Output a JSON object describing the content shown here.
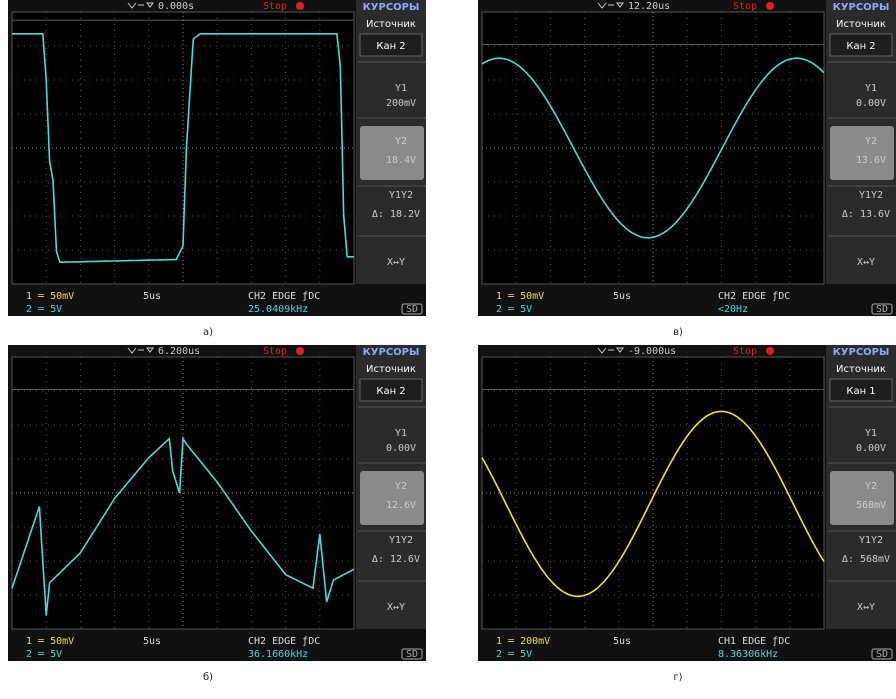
{
  "panels": [
    {
      "caption": "а)",
      "trigger_time": "0.000s",
      "status": "Stop",
      "menu": {
        "title": "КУРСОРЫ",
        "source_label": "Источник",
        "source": "Кан 2",
        "y1_label": "Y1",
        "y1": "200mV",
        "y2_label": "Y2",
        "y2": "18.4V",
        "y1y2_label": "Y1Y2",
        "delta": "Δ: 18.2V",
        "swap": "X↔Y"
      },
      "ch1": "1 ═ 50mV",
      "ch2": "2 ═ 5V",
      "timebase": "5us",
      "trigger": "CH2  EDGE  ƒDC",
      "frequency": "25.0409kHz",
      "sd": "SD"
    },
    {
      "caption": "в)",
      "trigger_time": "12.20us",
      "status": "Stop",
      "menu": {
        "title": "КУРСОРЫ",
        "source_label": "Источник",
        "source": "Кан 2",
        "y1_label": "Y1",
        "y1": "0.00V",
        "y2_label": "Y2",
        "y2": "13.6V",
        "y1y2_label": "Y1Y2",
        "delta": "Δ: 13.6V",
        "swap": "X↔Y"
      },
      "ch1": "1 ═ 50mV",
      "ch2": "2 ═ 5V",
      "timebase": "5us",
      "trigger": "CH2  EDGE  ƒDC",
      "frequency": "<20Hz",
      "sd": "SD"
    },
    {
      "caption": "б)",
      "trigger_time": "6.200us",
      "status": "Stop",
      "menu": {
        "title": "КУРСОРЫ",
        "source_label": "Источник",
        "source": "Кан 2",
        "y1_label": "Y1",
        "y1": "0.00V",
        "y2_label": "Y2",
        "y2": "12.6V",
        "y1y2_label": "Y1Y2",
        "delta": "Δ: 12.6V",
        "swap": "X↔Y"
      },
      "ch1": "1 ═ 50mV",
      "ch2": "2 ═ 5V",
      "timebase": "5us",
      "trigger": "CH2  EDGE  ƒDC",
      "frequency": "36.1660kHz",
      "sd": "SD"
    },
    {
      "caption": "г)",
      "trigger_time": "-9.000us",
      "status": "Stop",
      "menu": {
        "title": "КУРСОРЫ",
        "source_label": "Источник",
        "source": "Кан 1",
        "y1_label": "Y1",
        "y1": "0.00V",
        "y2_label": "Y2",
        "y2": "568mV",
        "y1y2_label": "Y1Y2",
        "delta": "Δ: 568mV",
        "swap": "X↔Y"
      },
      "ch1": "1 ═ 200mV",
      "ch2": "2 ═ 5V",
      "timebase": "5us",
      "trigger": "CH1  EDGE  ƒDC",
      "frequency": "8.36306kHz",
      "sd": "SD"
    }
  ]
}
